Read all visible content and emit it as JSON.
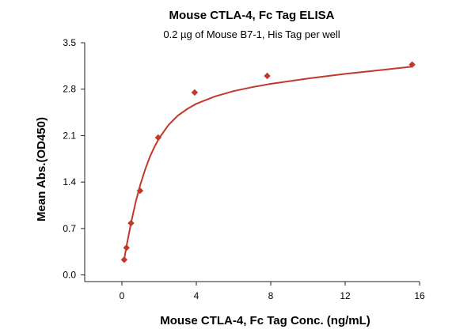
{
  "chart_data": {
    "type": "scatter",
    "title": "Mouse CTLA-4, Fc Tag ELISA",
    "subtitle": "0.2 µg of Mouse B7-1, His Tag per well",
    "xlabel": "Mouse CTLA-4, Fc Tag Conc. (ng/mL)",
    "ylabel": "Mean Abs.(OD450)",
    "xlim": [
      -2,
      16
    ],
    "ylim": [
      -0.1,
      3.5
    ],
    "x_ticks": [
      0,
      4,
      8,
      12,
      16
    ],
    "x_tick_labels": [
      "0",
      "4",
      "8",
      "12",
      "16"
    ],
    "y_ticks": [
      0.0,
      0.7,
      1.4,
      2.1,
      2.8,
      3.5
    ],
    "y_tick_labels": [
      "0.0",
      "0.7",
      "1.4",
      "2.1",
      "2.8",
      "3.5"
    ],
    "grid": false,
    "series": [
      {
        "x": [
          0.122,
          0.244,
          0.488,
          0.977,
          1.95,
          3.91,
          7.81,
          15.6
        ],
        "y": [
          0.23,
          0.41,
          0.78,
          1.27,
          2.07,
          2.75,
          3.0,
          3.17
        ],
        "marker": "diamond",
        "color": "#c0392b",
        "fit": "four-parameter logistic"
      }
    ],
    "fit_curve": {
      "color": "#c0392b",
      "x": [
        0.122,
        0.25,
        0.5,
        0.75,
        1.0,
        1.25,
        1.5,
        1.75,
        2.0,
        2.5,
        3.0,
        3.5,
        4.0,
        5.0,
        6.0,
        7.0,
        8.0,
        10.0,
        12.0,
        14.0,
        15.6
      ],
      "y": [
        0.24,
        0.44,
        0.8,
        1.11,
        1.37,
        1.59,
        1.78,
        1.93,
        2.06,
        2.26,
        2.4,
        2.5,
        2.58,
        2.69,
        2.77,
        2.83,
        2.88,
        2.96,
        3.03,
        3.09,
        3.14
      ]
    }
  }
}
